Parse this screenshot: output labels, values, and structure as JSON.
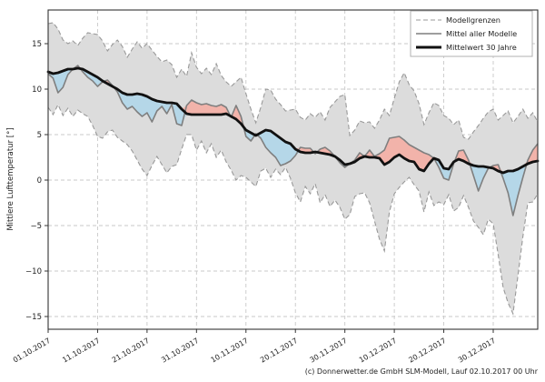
{
  "chart_data": {
    "type": "line",
    "title": "",
    "ylabel": "Mittlere Lufttemperatur [°]",
    "xlabel": "",
    "caption": "(c) Donnerwetter.de GmbH SLM-Modell, Lauf 02.10.2017 00 Uhr",
    "grid": true,
    "ylim": [
      -16.4,
      18.7
    ],
    "y_ticks": [
      15,
      10,
      5,
      0,
      -5,
      -10,
      -15
    ],
    "x_days_total": 99,
    "x_tick_days": [
      0,
      10,
      20,
      30,
      40,
      50,
      60,
      70,
      80,
      90
    ],
    "x_tick_labels": [
      "01.10.2017",
      "11.10.2017",
      "21.10.2017",
      "31.10.2017",
      "10.11.2017",
      "20.11.2017",
      "30.11.2017",
      "10.12.2017",
      "20.12.2017",
      "30.12.2017"
    ],
    "legend": {
      "position": "top-right",
      "entries": [
        {
          "label": "Modellgrenzen",
          "style": "dashed",
          "color": "#999999",
          "width": 1.1
        },
        {
          "label": "Mittel aller Modelle",
          "style": "solid",
          "color": "#7f7f7f",
          "width": 1.6
        },
        {
          "label": "Mittelwert 30 Jahre",
          "style": "solid",
          "color": "#111111",
          "width": 3.0
        }
      ]
    },
    "colors": {
      "band_fill": "#dcdcdc",
      "bound_line": "#999999",
      "model_mean_line": "#7f7f7f",
      "mean_30yr_line": "#111111",
      "warm_anomaly_fill": "#f2b3aa",
      "cold_anomaly_fill": "#b5d7e8",
      "gridline": "#c9c9c9",
      "axis": "#333333",
      "text": "#222222"
    },
    "series": [
      {
        "name": "Modellgrenzen (obere Grenze)",
        "role": "upper_bound",
        "values": [
          17.2,
          17.3,
          16.6,
          15.4,
          15.0,
          15.3,
          14.8,
          15.6,
          16.2,
          16.1,
          16.0,
          15.3,
          14.2,
          14.9,
          15.4,
          14.7,
          13.5,
          14.4,
          15.2,
          14.5,
          15.0,
          14.3,
          13.6,
          13.0,
          13.2,
          12.7,
          11.3,
          12.2,
          11.4,
          14.0,
          12.4,
          11.7,
          12.3,
          11.6,
          12.8,
          11.5,
          10.8,
          10.3,
          10.8,
          11.3,
          9.5,
          7.8,
          6.3,
          8.0,
          10.0,
          9.9,
          8.9,
          8.3,
          7.6,
          7.7,
          7.8,
          6.9,
          6.6,
          7.3,
          6.9,
          7.5,
          6.6,
          8.0,
          8.6,
          9.2,
          9.4,
          4.9,
          5.5,
          6.5,
          6.3,
          6.4,
          5.7,
          6.6,
          7.8,
          7.1,
          9.0,
          10.8,
          11.8,
          10.5,
          9.8,
          8.4,
          6.1,
          7.4,
          8.5,
          8.2,
          7.1,
          6.8,
          6.1,
          6.6,
          4.7,
          4.5,
          5.3,
          6.0,
          6.8,
          7.5,
          7.8,
          6.6,
          7.1,
          7.6,
          6.3,
          7.0,
          7.8,
          6.8,
          7.4,
          6.4
        ]
      },
      {
        "name": "Modellgrenzen (untere Grenze)",
        "role": "lower_bound",
        "values": [
          8.0,
          7.2,
          8.3,
          7.1,
          7.9,
          7.0,
          7.7,
          7.3,
          7.0,
          6.0,
          4.8,
          4.6,
          5.3,
          5.5,
          4.7,
          4.3,
          3.9,
          3.2,
          2.2,
          1.2,
          0.5,
          1.6,
          2.6,
          1.7,
          0.8,
          1.5,
          1.7,
          3.4,
          5.0,
          5.0,
          3.3,
          4.3,
          3.0,
          4.0,
          2.5,
          3.3,
          2.0,
          1.1,
          0.0,
          0.5,
          0.3,
          -0.2,
          -0.7,
          1.0,
          1.3,
          0.3,
          1.2,
          0.6,
          1.4,
          0.2,
          -1.4,
          -2.4,
          -0.7,
          -1.5,
          -0.4,
          -2.5,
          -1.6,
          -2.9,
          -2.2,
          -3.0,
          -4.3,
          -3.8,
          -1.8,
          -1.5,
          -1.4,
          -2.5,
          -4.5,
          -6.5,
          -7.8,
          -3.5,
          -1.5,
          -0.8,
          -0.2,
          0.3,
          -0.5,
          -1.2,
          -3.5,
          -1.3,
          -2.8,
          -2.4,
          -2.7,
          -1.6,
          -3.4,
          -3.0,
          -1.7,
          -3.0,
          -4.5,
          -5.2,
          -6.0,
          -4.3,
          -4.8,
          -8.2,
          -11.8,
          -13.5,
          -14.7,
          -10.5,
          -6.2,
          -2.5,
          -2.4,
          -1.5
        ]
      },
      {
        "name": "Mittel aller Modelle",
        "role": "model_mean",
        "values": [
          11.7,
          11.2,
          9.6,
          10.2,
          11.6,
          12.2,
          12.6,
          11.9,
          11.3,
          10.9,
          10.3,
          10.8,
          11.0,
          10.4,
          9.7,
          8.5,
          7.8,
          8.1,
          7.5,
          7.0,
          7.4,
          6.4,
          7.6,
          8.1,
          7.3,
          8.3,
          6.2,
          6.0,
          8.2,
          8.8,
          8.5,
          8.3,
          8.4,
          8.2,
          8.1,
          8.3,
          8.0,
          6.9,
          8.2,
          7.0,
          4.8,
          4.3,
          5.1,
          4.6,
          3.6,
          3.0,
          2.5,
          1.6,
          1.8,
          2.1,
          2.7,
          3.6,
          3.5,
          3.5,
          2.9,
          3.4,
          3.6,
          3.2,
          2.6,
          1.9,
          1.4,
          1.8,
          2.2,
          3.0,
          2.6,
          3.3,
          2.6,
          2.9,
          3.3,
          4.6,
          4.7,
          4.8,
          4.4,
          3.9,
          3.6,
          3.3,
          3.0,
          2.8,
          2.4,
          1.4,
          0.2,
          0.0,
          1.8,
          3.2,
          3.3,
          2.2,
          0.5,
          -1.2,
          0.2,
          1.3,
          1.6,
          1.7,
          0.2,
          -1.4,
          -3.9,
          -1.7,
          0.3,
          2.2,
          3.3,
          4.0
        ]
      },
      {
        "name": "Mittelwert 30 Jahre",
        "role": "mean_30yr",
        "values": [
          11.9,
          11.7,
          11.8,
          12.0,
          12.2,
          12.2,
          12.3,
          12.2,
          11.9,
          11.6,
          11.3,
          10.9,
          10.6,
          10.3,
          10.0,
          9.6,
          9.4,
          9.4,
          9.5,
          9.4,
          9.2,
          8.9,
          8.7,
          8.6,
          8.5,
          8.5,
          8.4,
          7.8,
          7.3,
          7.2,
          7.2,
          7.2,
          7.2,
          7.2,
          7.2,
          7.2,
          7.3,
          7.0,
          6.7,
          6.2,
          5.5,
          5.2,
          4.9,
          5.2,
          5.5,
          5.4,
          5.0,
          4.6,
          4.2,
          4.0,
          3.4,
          3.1,
          3.0,
          3.0,
          3.1,
          3.0,
          2.9,
          2.8,
          2.6,
          2.2,
          1.7,
          1.8,
          2.0,
          2.4,
          2.6,
          2.5,
          2.5,
          2.4,
          1.7,
          2.0,
          2.5,
          2.8,
          2.4,
          2.1,
          2.0,
          1.2,
          1.0,
          1.8,
          2.4,
          2.2,
          1.3,
          1.2,
          2.0,
          2.3,
          2.1,
          1.8,
          1.6,
          1.5,
          1.5,
          1.4,
          1.3,
          1.0,
          0.8,
          1.0,
          1.0,
          1.2,
          1.5,
          1.8,
          2.0,
          2.1
        ]
      }
    ]
  }
}
